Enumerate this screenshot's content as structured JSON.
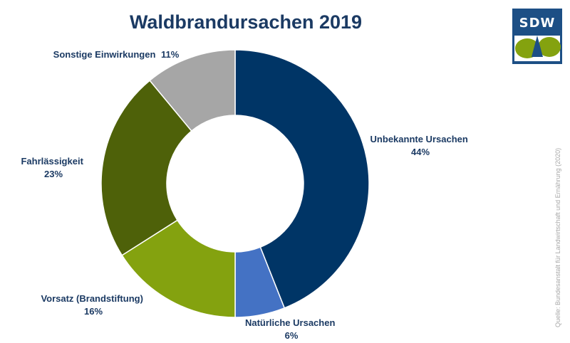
{
  "chart_data": {
    "type": "pie",
    "title": "Waldbrandursachen 2019",
    "categories": [
      "Unbekannte Ursachen",
      "Natürliche Ursachen",
      "Vorsatz (Brandstiftung)",
      "Fahrlässigkeit",
      "Sonstige Einwirkungen"
    ],
    "values": [
      44,
      6,
      16,
      23,
      11
    ],
    "labels": [
      "44%",
      "6%",
      "16%",
      "23%",
      "11%"
    ],
    "colors": [
      "#003566",
      "#4472c4",
      "#84a20f",
      "#4e6109",
      "#a6a6a6"
    ],
    "legend": "none"
  },
  "logo": {
    "text": "SDW"
  },
  "source": "Quelle: Bundesanstalt für Landwirtschaft und Ernährung (2020)"
}
